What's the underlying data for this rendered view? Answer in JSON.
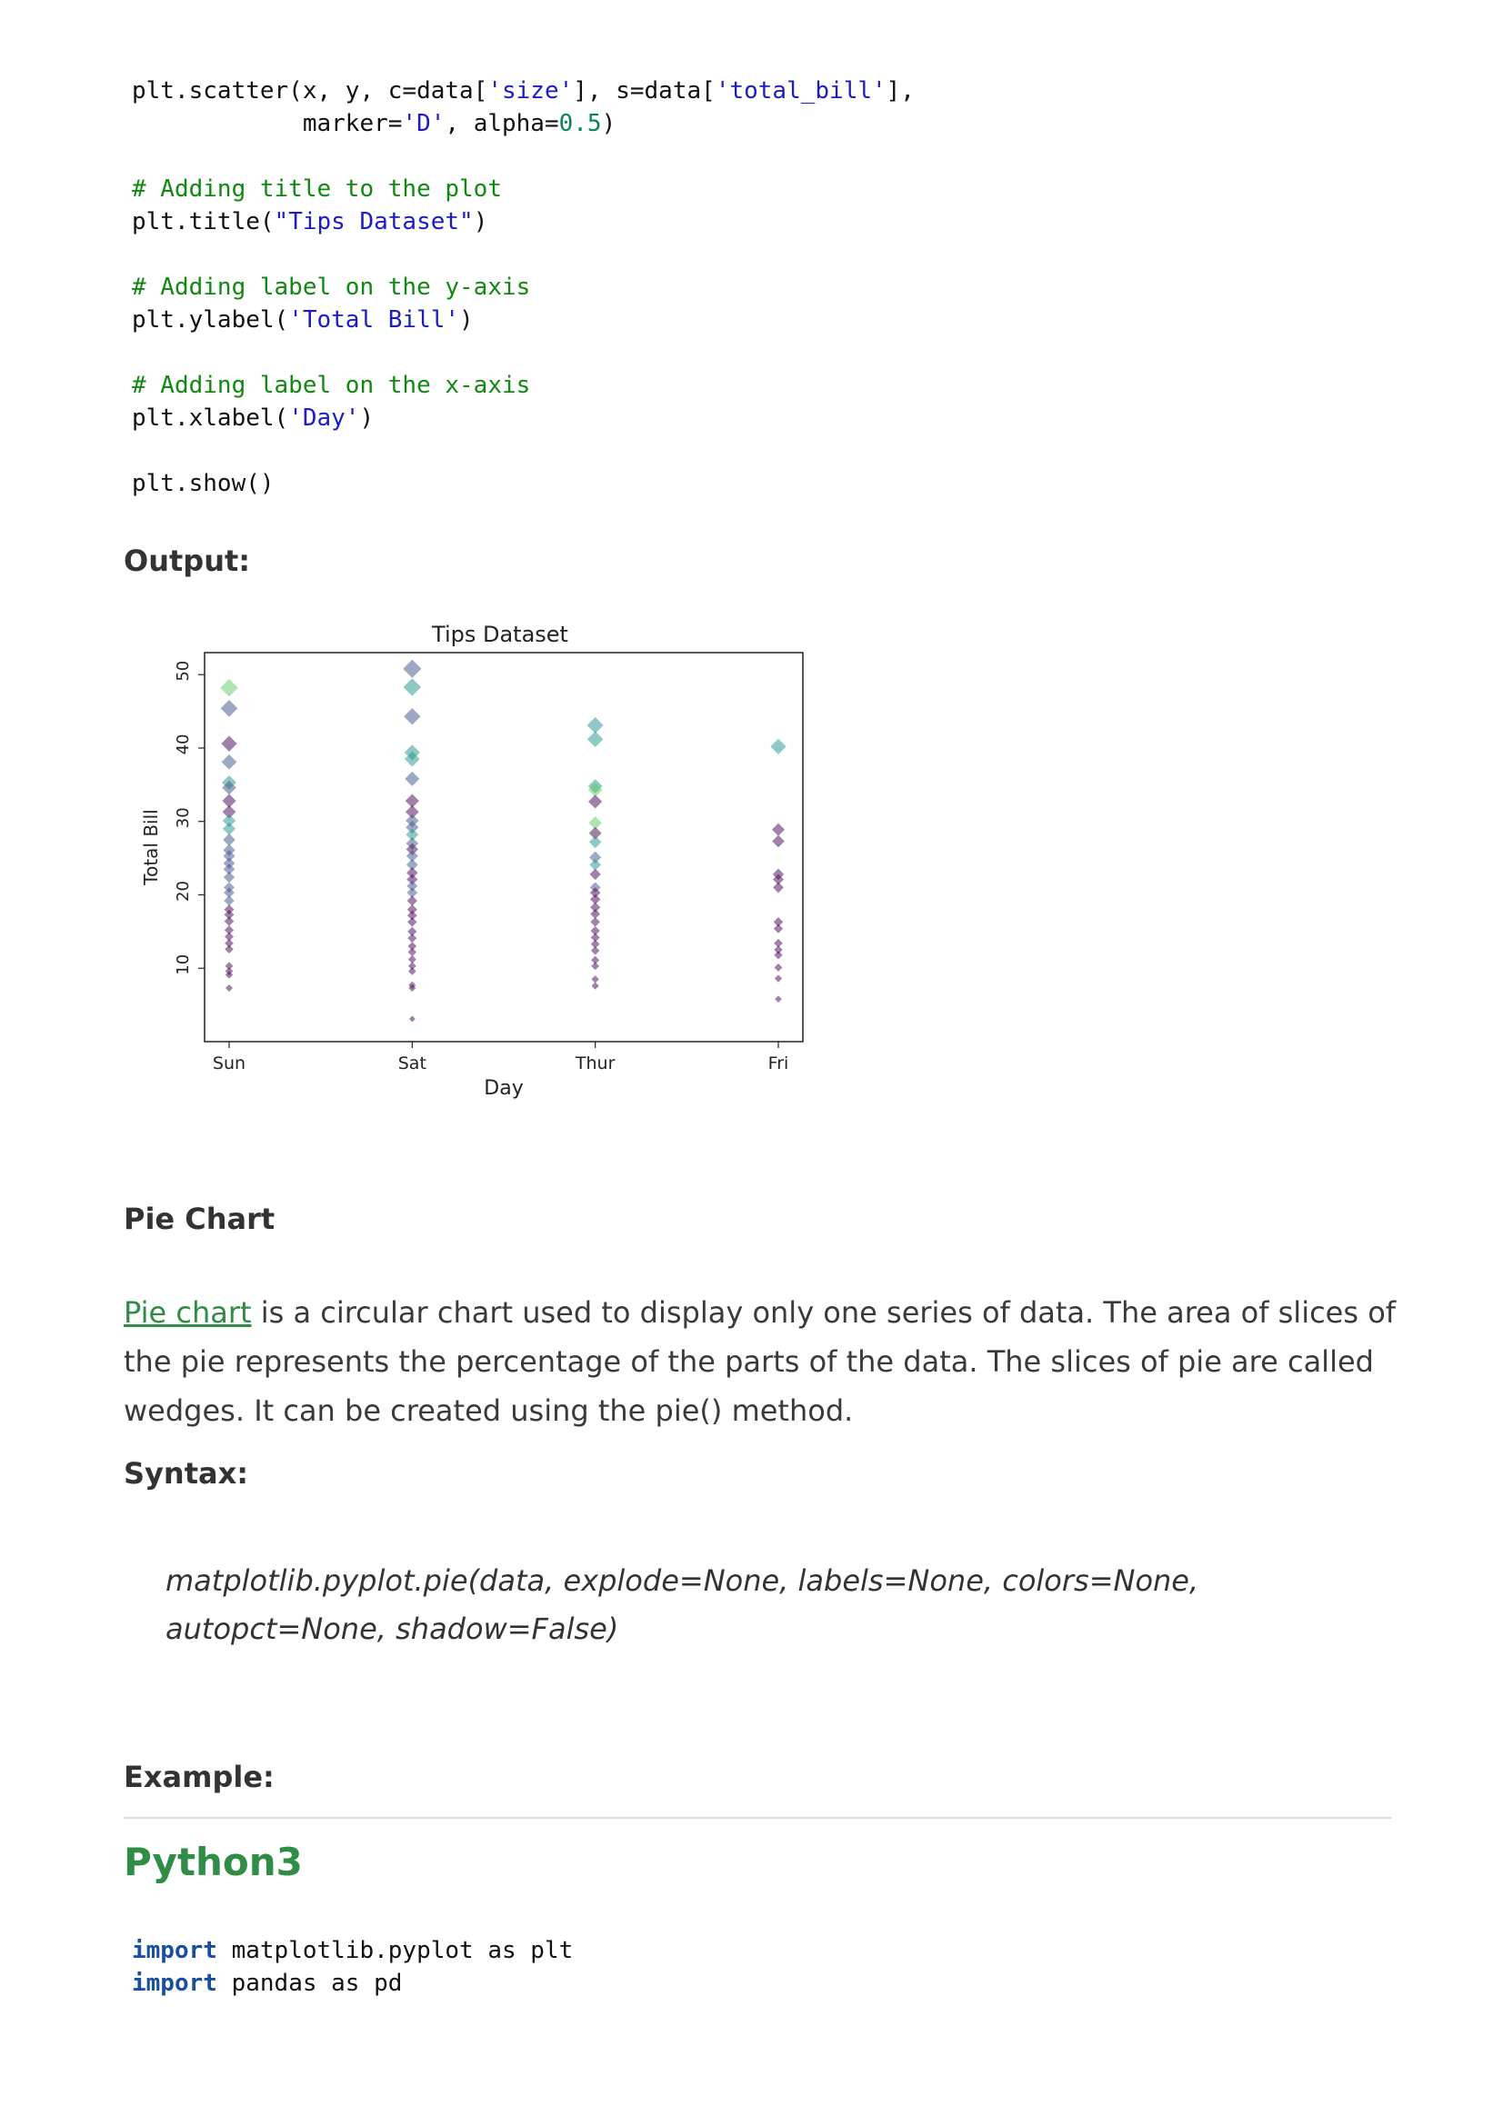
{
  "code_top": {
    "line1a": "plt.scatter(x, y, c=data[",
    "line1b": "'size'",
    "line1c": "], s=data[",
    "line1d": "'total_bill'",
    "line1e": "],",
    "line2a": "            marker=",
    "line2b": "'D'",
    "line2c": ", alpha=",
    "line2d": "0.5",
    "line2e": ")",
    "comment_title": "# Adding title to the plot",
    "title_a": "plt.title(",
    "title_b": "\"Tips Dataset\"",
    "title_c": ")",
    "comment_ylabel": "# Adding label on the y-axis",
    "ylabel_a": "plt.ylabel(",
    "ylabel_b": "'Total Bill'",
    "ylabel_c": ")",
    "comment_xlabel": "# Adding label on the x-axis",
    "xlabel_a": "plt.xlabel(",
    "xlabel_b": "'Day'",
    "xlabel_c": ")",
    "show": "plt.show()"
  },
  "output_heading": "Output:",
  "chart_data": {
    "type": "scatter",
    "title": "Tips Dataset",
    "xlabel": "Day",
    "ylabel": "Total Bill",
    "categories": [
      "Sun",
      "Sat",
      "Thur",
      "Fri"
    ],
    "yticks": [
      10,
      20,
      30,
      40,
      50
    ],
    "ylim": [
      0,
      53
    ],
    "marker": "diamond",
    "alpha": 0.5,
    "grid": false,
    "colormap": [
      "#440154",
      "#3b528b",
      "#21918c",
      "#5ec962",
      "#fde725"
    ],
    "points": [
      {
        "x": "Sun",
        "y": 48.2,
        "size": 4
      },
      {
        "x": "Sun",
        "y": 45.4,
        "size": 2
      },
      {
        "x": "Sun",
        "y": 40.6,
        "size": 1
      },
      {
        "x": "Sun",
        "y": 38.1,
        "size": 2
      },
      {
        "x": "Sun",
        "y": 35.3,
        "size": 3
      },
      {
        "x": "Sun",
        "y": 34.6,
        "size": 2
      },
      {
        "x": "Sun",
        "y": 32.8,
        "size": 1
      },
      {
        "x": "Sun",
        "y": 31.3,
        "size": 1
      },
      {
        "x": "Sun",
        "y": 30.1,
        "size": 3
      },
      {
        "x": "Sun",
        "y": 29.0,
        "size": 3
      },
      {
        "x": "Sun",
        "y": 27.5,
        "size": 2
      },
      {
        "x": "Sun",
        "y": 26.1,
        "size": 2
      },
      {
        "x": "Sun",
        "y": 25.3,
        "size": 2
      },
      {
        "x": "Sun",
        "y": 24.3,
        "size": 2
      },
      {
        "x": "Sun",
        "y": 23.5,
        "size": 2
      },
      {
        "x": "Sun",
        "y": 22.4,
        "size": 2
      },
      {
        "x": "Sun",
        "y": 21.0,
        "size": 2
      },
      {
        "x": "Sun",
        "y": 20.3,
        "size": 2
      },
      {
        "x": "Sun",
        "y": 19.2,
        "size": 2
      },
      {
        "x": "Sun",
        "y": 18.0,
        "size": 1
      },
      {
        "x": "Sun",
        "y": 17.3,
        "size": 1
      },
      {
        "x": "Sun",
        "y": 16.4,
        "size": 1
      },
      {
        "x": "Sun",
        "y": 15.2,
        "size": 1
      },
      {
        "x": "Sun",
        "y": 14.3,
        "size": 1
      },
      {
        "x": "Sun",
        "y": 13.4,
        "size": 1
      },
      {
        "x": "Sun",
        "y": 12.6,
        "size": 1
      },
      {
        "x": "Sun",
        "y": 10.3,
        "size": 1
      },
      {
        "x": "Sun",
        "y": 9.6,
        "size": 1
      },
      {
        "x": "Sun",
        "y": 9.1,
        "size": 1
      },
      {
        "x": "Sun",
        "y": 7.3,
        "size": 1
      },
      {
        "x": "Sat",
        "y": 50.8,
        "size": 2
      },
      {
        "x": "Sat",
        "y": 48.3,
        "size": 3
      },
      {
        "x": "Sat",
        "y": 44.3,
        "size": 2
      },
      {
        "x": "Sat",
        "y": 39.4,
        "size": 3
      },
      {
        "x": "Sat",
        "y": 38.5,
        "size": 3
      },
      {
        "x": "Sat",
        "y": 35.8,
        "size": 2
      },
      {
        "x": "Sat",
        "y": 32.8,
        "size": 1
      },
      {
        "x": "Sat",
        "y": 31.3,
        "size": 1
      },
      {
        "x": "Sat",
        "y": 30.1,
        "size": 2
      },
      {
        "x": "Sat",
        "y": 29.2,
        "size": 2
      },
      {
        "x": "Sat",
        "y": 28.2,
        "size": 3
      },
      {
        "x": "Sat",
        "y": 27.0,
        "size": 2
      },
      {
        "x": "Sat",
        "y": 26.2,
        "size": 1
      },
      {
        "x": "Sat",
        "y": 25.3,
        "size": 2
      },
      {
        "x": "Sat",
        "y": 24.1,
        "size": 2
      },
      {
        "x": "Sat",
        "y": 23.0,
        "size": 1
      },
      {
        "x": "Sat",
        "y": 22.1,
        "size": 1
      },
      {
        "x": "Sat",
        "y": 21.2,
        "size": 2
      },
      {
        "x": "Sat",
        "y": 20.3,
        "size": 2
      },
      {
        "x": "Sat",
        "y": 19.2,
        "size": 1
      },
      {
        "x": "Sat",
        "y": 18.0,
        "size": 1
      },
      {
        "x": "Sat",
        "y": 17.2,
        "size": 1
      },
      {
        "x": "Sat",
        "y": 16.3,
        "size": 1
      },
      {
        "x": "Sat",
        "y": 15.0,
        "size": 1
      },
      {
        "x": "Sat",
        "y": 14.1,
        "size": 1
      },
      {
        "x": "Sat",
        "y": 13.0,
        "size": 1
      },
      {
        "x": "Sat",
        "y": 12.2,
        "size": 1
      },
      {
        "x": "Sat",
        "y": 11.2,
        "size": 1
      },
      {
        "x": "Sat",
        "y": 10.3,
        "size": 1
      },
      {
        "x": "Sat",
        "y": 9.6,
        "size": 1
      },
      {
        "x": "Sat",
        "y": 7.7,
        "size": 1
      },
      {
        "x": "Sat",
        "y": 7.3,
        "size": 1
      },
      {
        "x": "Sat",
        "y": 3.1,
        "size": 1
      },
      {
        "x": "Thur",
        "y": 43.1,
        "size": 3
      },
      {
        "x": "Thur",
        "y": 41.2,
        "size": 3
      },
      {
        "x": "Thur",
        "y": 34.8,
        "size": 3
      },
      {
        "x": "Thur",
        "y": 34.3,
        "size": 4
      },
      {
        "x": "Thur",
        "y": 32.7,
        "size": 1
      },
      {
        "x": "Thur",
        "y": 29.8,
        "size": 4
      },
      {
        "x": "Thur",
        "y": 28.4,
        "size": 1
      },
      {
        "x": "Thur",
        "y": 27.2,
        "size": 3
      },
      {
        "x": "Thur",
        "y": 25.1,
        "size": 2
      },
      {
        "x": "Thur",
        "y": 24.1,
        "size": 3
      },
      {
        "x": "Thur",
        "y": 22.8,
        "size": 1
      },
      {
        "x": "Thur",
        "y": 21.0,
        "size": 2
      },
      {
        "x": "Thur",
        "y": 20.3,
        "size": 1
      },
      {
        "x": "Thur",
        "y": 19.4,
        "size": 1
      },
      {
        "x": "Thur",
        "y": 18.3,
        "size": 1
      },
      {
        "x": "Thur",
        "y": 17.4,
        "size": 1
      },
      {
        "x": "Thur",
        "y": 16.3,
        "size": 1
      },
      {
        "x": "Thur",
        "y": 15.1,
        "size": 1
      },
      {
        "x": "Thur",
        "y": 14.2,
        "size": 1
      },
      {
        "x": "Thur",
        "y": 13.3,
        "size": 1
      },
      {
        "x": "Thur",
        "y": 12.4,
        "size": 1
      },
      {
        "x": "Thur",
        "y": 11.1,
        "size": 1
      },
      {
        "x": "Thur",
        "y": 10.3,
        "size": 1
      },
      {
        "x": "Thur",
        "y": 8.5,
        "size": 1
      },
      {
        "x": "Thur",
        "y": 7.6,
        "size": 1
      },
      {
        "x": "Fri",
        "y": 40.2,
        "size": 3
      },
      {
        "x": "Fri",
        "y": 28.9,
        "size": 1
      },
      {
        "x": "Fri",
        "y": 27.3,
        "size": 1
      },
      {
        "x": "Fri",
        "y": 22.8,
        "size": 1
      },
      {
        "x": "Fri",
        "y": 22.1,
        "size": 1
      },
      {
        "x": "Fri",
        "y": 21.0,
        "size": 1
      },
      {
        "x": "Fri",
        "y": 16.3,
        "size": 1
      },
      {
        "x": "Fri",
        "y": 15.4,
        "size": 1
      },
      {
        "x": "Fri",
        "y": 13.4,
        "size": 1
      },
      {
        "x": "Fri",
        "y": 12.5,
        "size": 1
      },
      {
        "x": "Fri",
        "y": 11.8,
        "size": 1
      },
      {
        "x": "Fri",
        "y": 10.1,
        "size": 1
      },
      {
        "x": "Fri",
        "y": 8.6,
        "size": 1
      },
      {
        "x": "Fri",
        "y": 5.8,
        "size": 1
      }
    ]
  },
  "pie_section": {
    "heading": "Pie Chart",
    "link_text": "Pie chart",
    "description": " is a circular chart used to display only one series of data. The area of slices of the pie represents the percentage of the parts of the data. The slices of pie are called wedges. It can be created using the pie() method.",
    "syntax_heading": "Syntax:",
    "syntax_text": "matplotlib.pyplot.pie(data, explode=None, labels=None, colors=None, autopct=None, shadow=False)",
    "example_heading": "Example:",
    "lang_label": "Python3"
  },
  "code_bottom": {
    "line1_kw": "import",
    "line1_rest": " matplotlib.pyplot as plt",
    "line2_kw": "import",
    "line2_rest": " pandas as pd"
  }
}
